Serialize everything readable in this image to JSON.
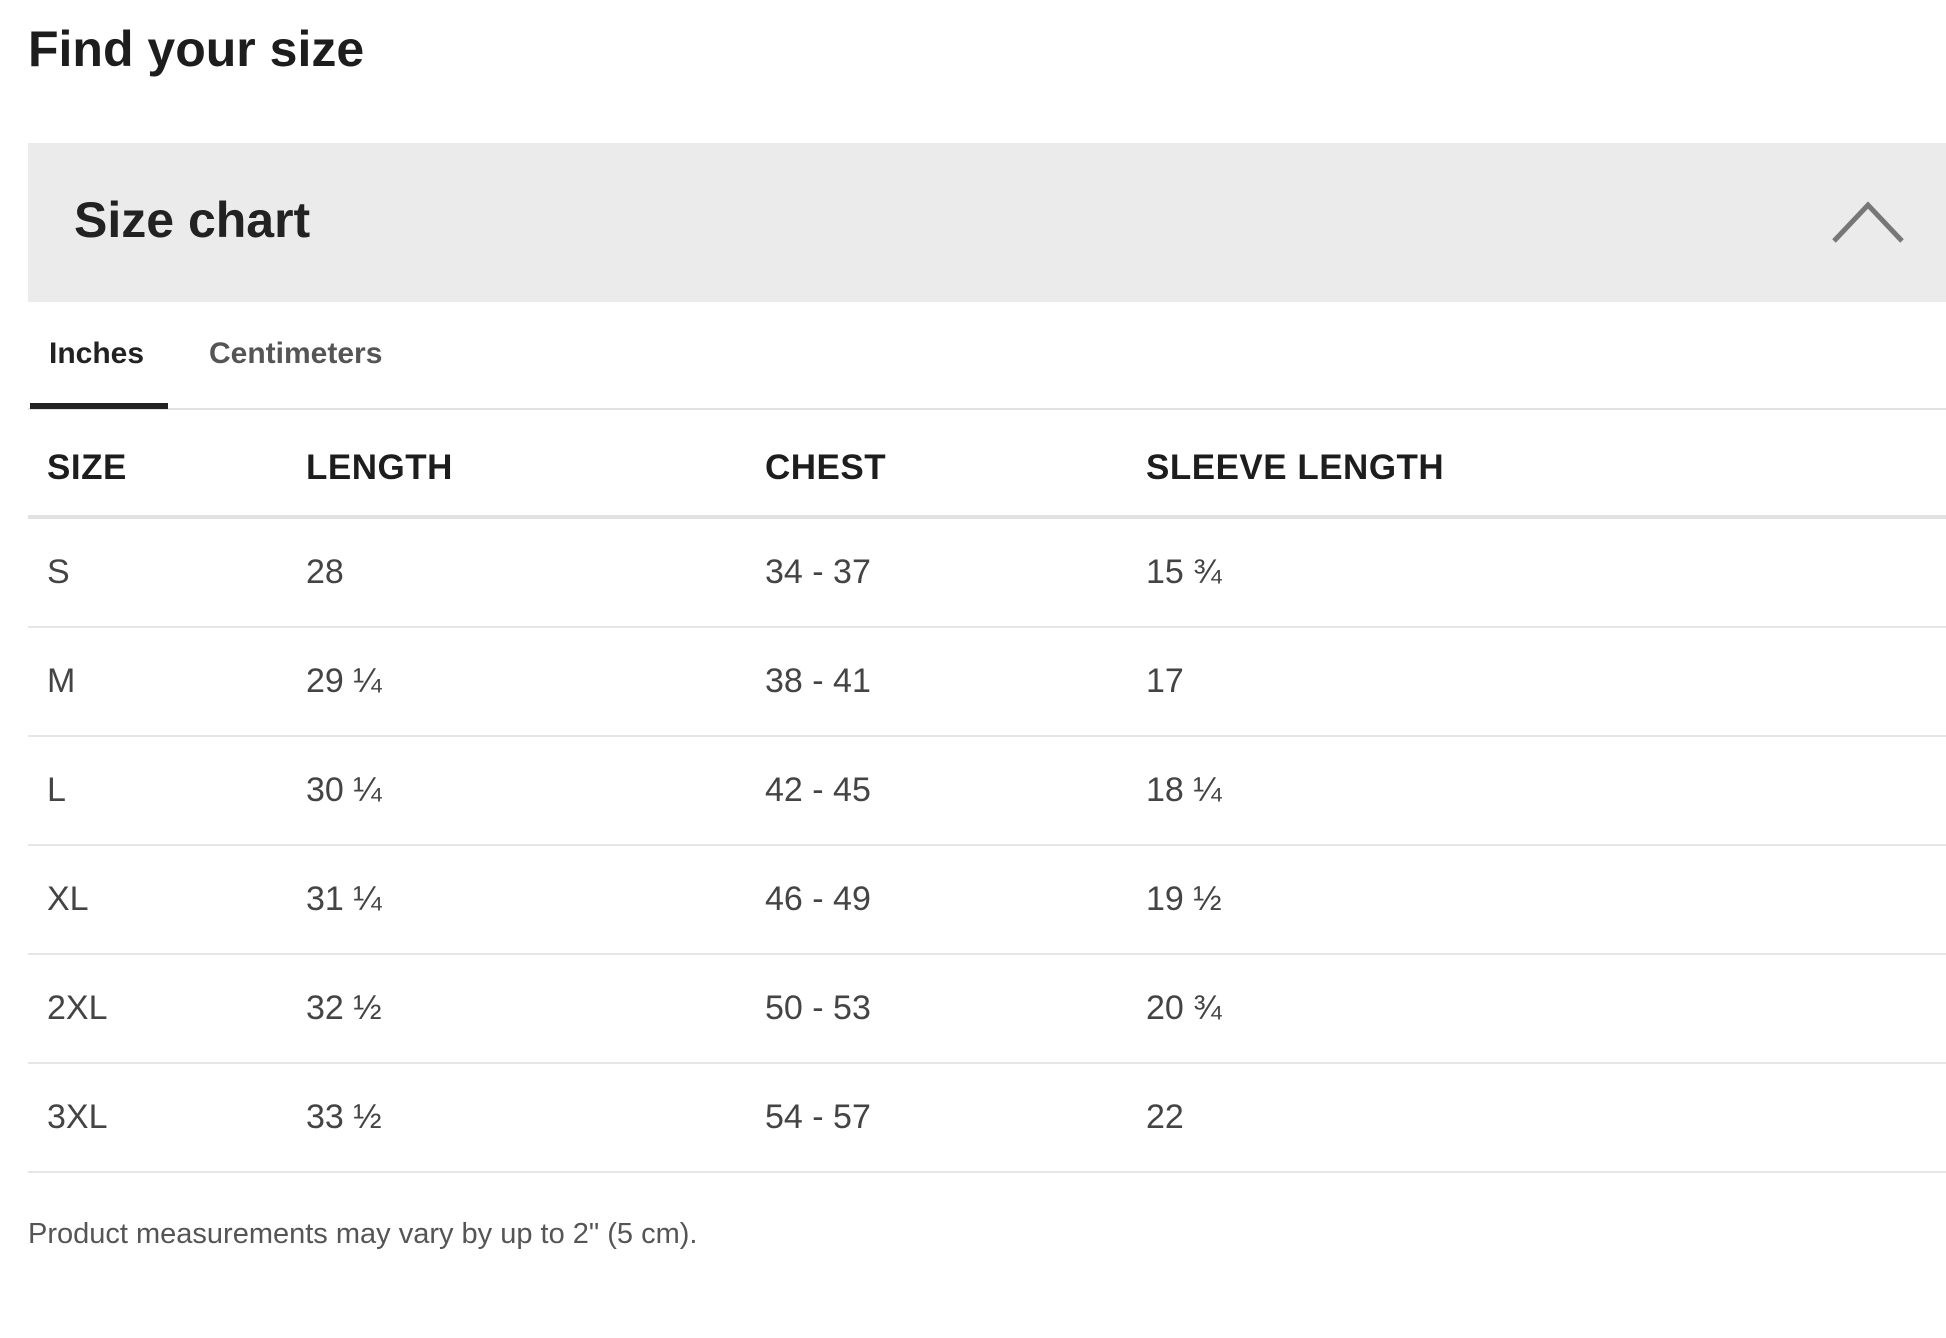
{
  "title": "Find your size",
  "accordion": {
    "title": "Size chart",
    "icon": "chevron-up-icon",
    "expanded": true
  },
  "tabs": [
    {
      "label": "Inches",
      "active": true
    },
    {
      "label": "Centimeters",
      "active": false
    }
  ],
  "table": {
    "headers": [
      "SIZE",
      "LENGTH",
      "CHEST",
      "SLEEVE LENGTH"
    ],
    "rows": [
      [
        "S",
        "28",
        "34 - 37",
        "15 ¾"
      ],
      [
        "M",
        "29 ¼",
        "38 - 41",
        "17"
      ],
      [
        "L",
        "30 ¼",
        "42 - 45",
        "18 ¼"
      ],
      [
        "XL",
        "31 ¼",
        "46 - 49",
        "19 ½"
      ],
      [
        "2XL",
        "32 ½",
        "50 - 53",
        "20 ¾"
      ],
      [
        "3XL",
        "33 ½",
        "54 - 57",
        "22"
      ]
    ]
  },
  "note": "Product measurements may vary by up to 2\" (5 cm)."
}
